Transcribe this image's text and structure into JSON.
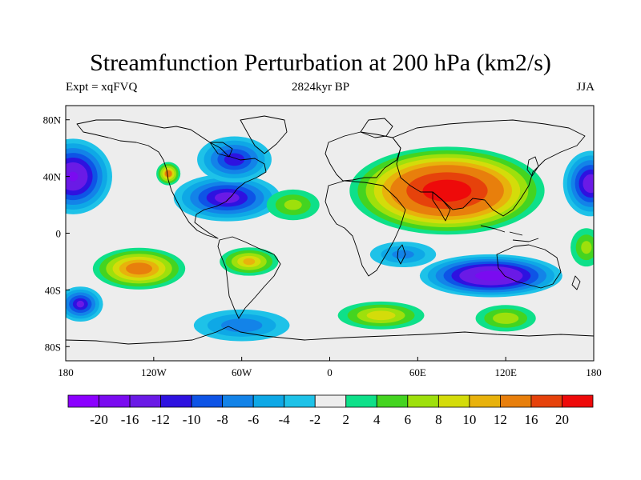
{
  "title": "Streamfunction Perturbation at 200 hPa (km2/s)",
  "subtitle_left": "Expt = xqFVQ",
  "subtitle_center": "2824kyr BP",
  "subtitle_right": "JJA",
  "map": {
    "projection": "cylindrical-equidistant",
    "lon_range": [
      -180,
      180
    ],
    "lat_range": [
      -90,
      90
    ],
    "x_ticks": [
      {
        "value": -180,
        "label": "180"
      },
      {
        "value": -120,
        "label": "120W"
      },
      {
        "value": -60,
        "label": "60W"
      },
      {
        "value": 0,
        "label": "0"
      },
      {
        "value": 60,
        "label": "60E"
      },
      {
        "value": 120,
        "label": "120E"
      },
      {
        "value": 180,
        "label": "180"
      }
    ],
    "y_ticks": [
      {
        "value": 80,
        "label": "80N"
      },
      {
        "value": 40,
        "label": "40N"
      },
      {
        "value": 0,
        "label": "0"
      },
      {
        "value": -40,
        "label": "40S"
      },
      {
        "value": -80,
        "label": "80S"
      }
    ],
    "fields": [
      {
        "name": "asia-high",
        "lon": 80,
        "lat": 30,
        "rx": 60,
        "ry": 28,
        "peak": 24
      },
      {
        "name": "us-low",
        "lon": -70,
        "lat": 25,
        "rx": 35,
        "ry": 16,
        "peak": -13
      },
      {
        "name": "canada-low",
        "lon": -65,
        "lat": 52,
        "rx": 25,
        "ry": 16,
        "peak": -11
      },
      {
        "name": "pacific-east-low",
        "lon": -175,
        "lat": 40,
        "rx": 25,
        "ry": 25,
        "peak": -16
      },
      {
        "name": "pacific-west-low",
        "lon": 178,
        "lat": 35,
        "rx": 18,
        "ry": 22,
        "peak": -14
      },
      {
        "name": "pacific-small-high",
        "lon": -110,
        "lat": 42,
        "rx": 8,
        "ry": 8,
        "peak": 12
      },
      {
        "name": "indian-ocean-low",
        "lon": 110,
        "lat": -30,
        "rx": 45,
        "ry": 14,
        "peak": -18
      },
      {
        "name": "south-pacific-high",
        "lon": -130,
        "lat": -25,
        "rx": 30,
        "ry": 14,
        "peak": 14
      },
      {
        "name": "south-atlantic-high",
        "lon": -55,
        "lat": -20,
        "rx": 20,
        "ry": 10,
        "peak": 10
      },
      {
        "name": "atlantic-high",
        "lon": -25,
        "lat": 20,
        "rx": 20,
        "ry": 12,
        "peak": 6
      },
      {
        "name": "southern-ocean-high-1",
        "lon": 35,
        "lat": -58,
        "rx": 30,
        "ry": 10,
        "peak": 9
      },
      {
        "name": "southern-ocean-high-2",
        "lon": 120,
        "lat": -60,
        "rx": 22,
        "ry": 10,
        "peak": 7
      },
      {
        "name": "southern-ocean-low",
        "lon": -60,
        "lat": -65,
        "rx": 35,
        "ry": 12,
        "peak": -7
      },
      {
        "name": "far-south-pacific-low",
        "lon": -170,
        "lat": -50,
        "rx": 15,
        "ry": 12,
        "peak": -12
      },
      {
        "name": "africa-low",
        "lon": 50,
        "lat": -15,
        "rx": 25,
        "ry": 10,
        "peak": -6
      },
      {
        "name": "pacific-east-high",
        "lon": 175,
        "lat": -10,
        "rx": 12,
        "ry": 15,
        "peak": 6
      }
    ],
    "colors": {
      "ocean_fill": "#ffffff",
      "coast_line": "#000000"
    }
  },
  "colorbar": {
    "colors": [
      "#8b00ff",
      "#7a0bf0",
      "#6a1ae6",
      "#2e12e0",
      "#0e54e6",
      "#1383e8",
      "#0ea8e6",
      "#1ec2e8",
      "#ededed",
      "#0ee089",
      "#44d420",
      "#9ee00c",
      "#d4dc0a",
      "#e8b20c",
      "#e87f0c",
      "#e6420b",
      "#ee0a0a"
    ],
    "labels": [
      "-20",
      "-16",
      "-12",
      "-10",
      "-8",
      "-6",
      "-4",
      "-2",
      "2",
      "4",
      "6",
      "8",
      "10",
      "12",
      "16",
      "20"
    ],
    "thresholds": [
      -20,
      -16,
      -12,
      -10,
      -8,
      -6,
      -4,
      -2,
      2,
      4,
      6,
      8,
      10,
      12,
      16,
      20
    ]
  }
}
